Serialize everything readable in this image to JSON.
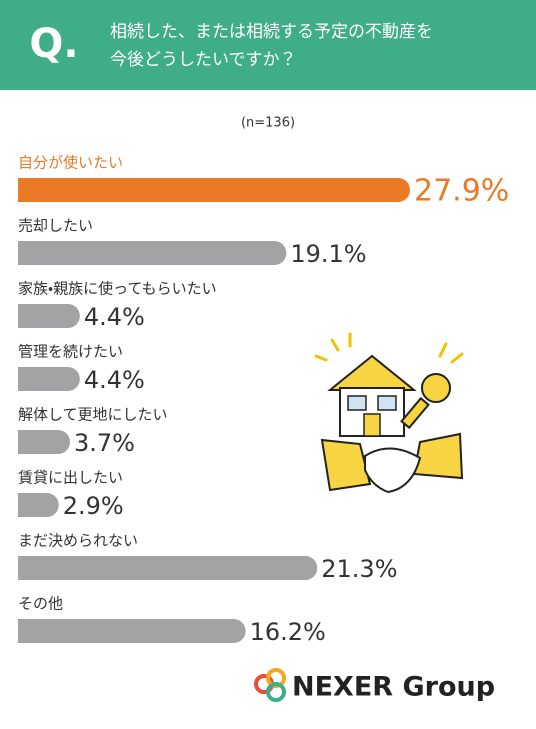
{
  "chart_data": {
    "type": "bar",
    "orientation": "horizontal",
    "title_prefix": "Q.",
    "title": [
      "相続した、または相続する予定の不動産を",
      "今後どうしたいですか？"
    ],
    "subtitle": "(n=136)",
    "categories": [
      "自分が使いたい",
      "売却したい",
      "家族・親族に使ってもらいたい",
      "管理を続けたい",
      "解体して更地にしたい",
      "賃貸に出したい",
      "まだ決められない",
      "その他"
    ],
    "values": [
      27.9,
      19.1,
      4.4,
      4.4,
      3.7,
      2.9,
      21.3,
      16.2
    ],
    "value_labels": [
      "27.9%",
      "19.1%",
      "4.4%",
      "4.4%",
      "3.7%",
      "2.9%",
      "21.3%",
      "16.2%"
    ],
    "colors": [
      "#ea7a26",
      "#a3a3a6",
      "#a3a3a6",
      "#a3a3a6",
      "#a3a3a6",
      "#a3a3a6",
      "#a3a3a6",
      "#a3a3a6"
    ],
    "label_colors": [
      "#ea7a26",
      "#333333",
      "#333333",
      "#333333",
      "#333333",
      "#333333",
      "#333333",
      "#333333"
    ],
    "brand": "NEXER Group"
  }
}
